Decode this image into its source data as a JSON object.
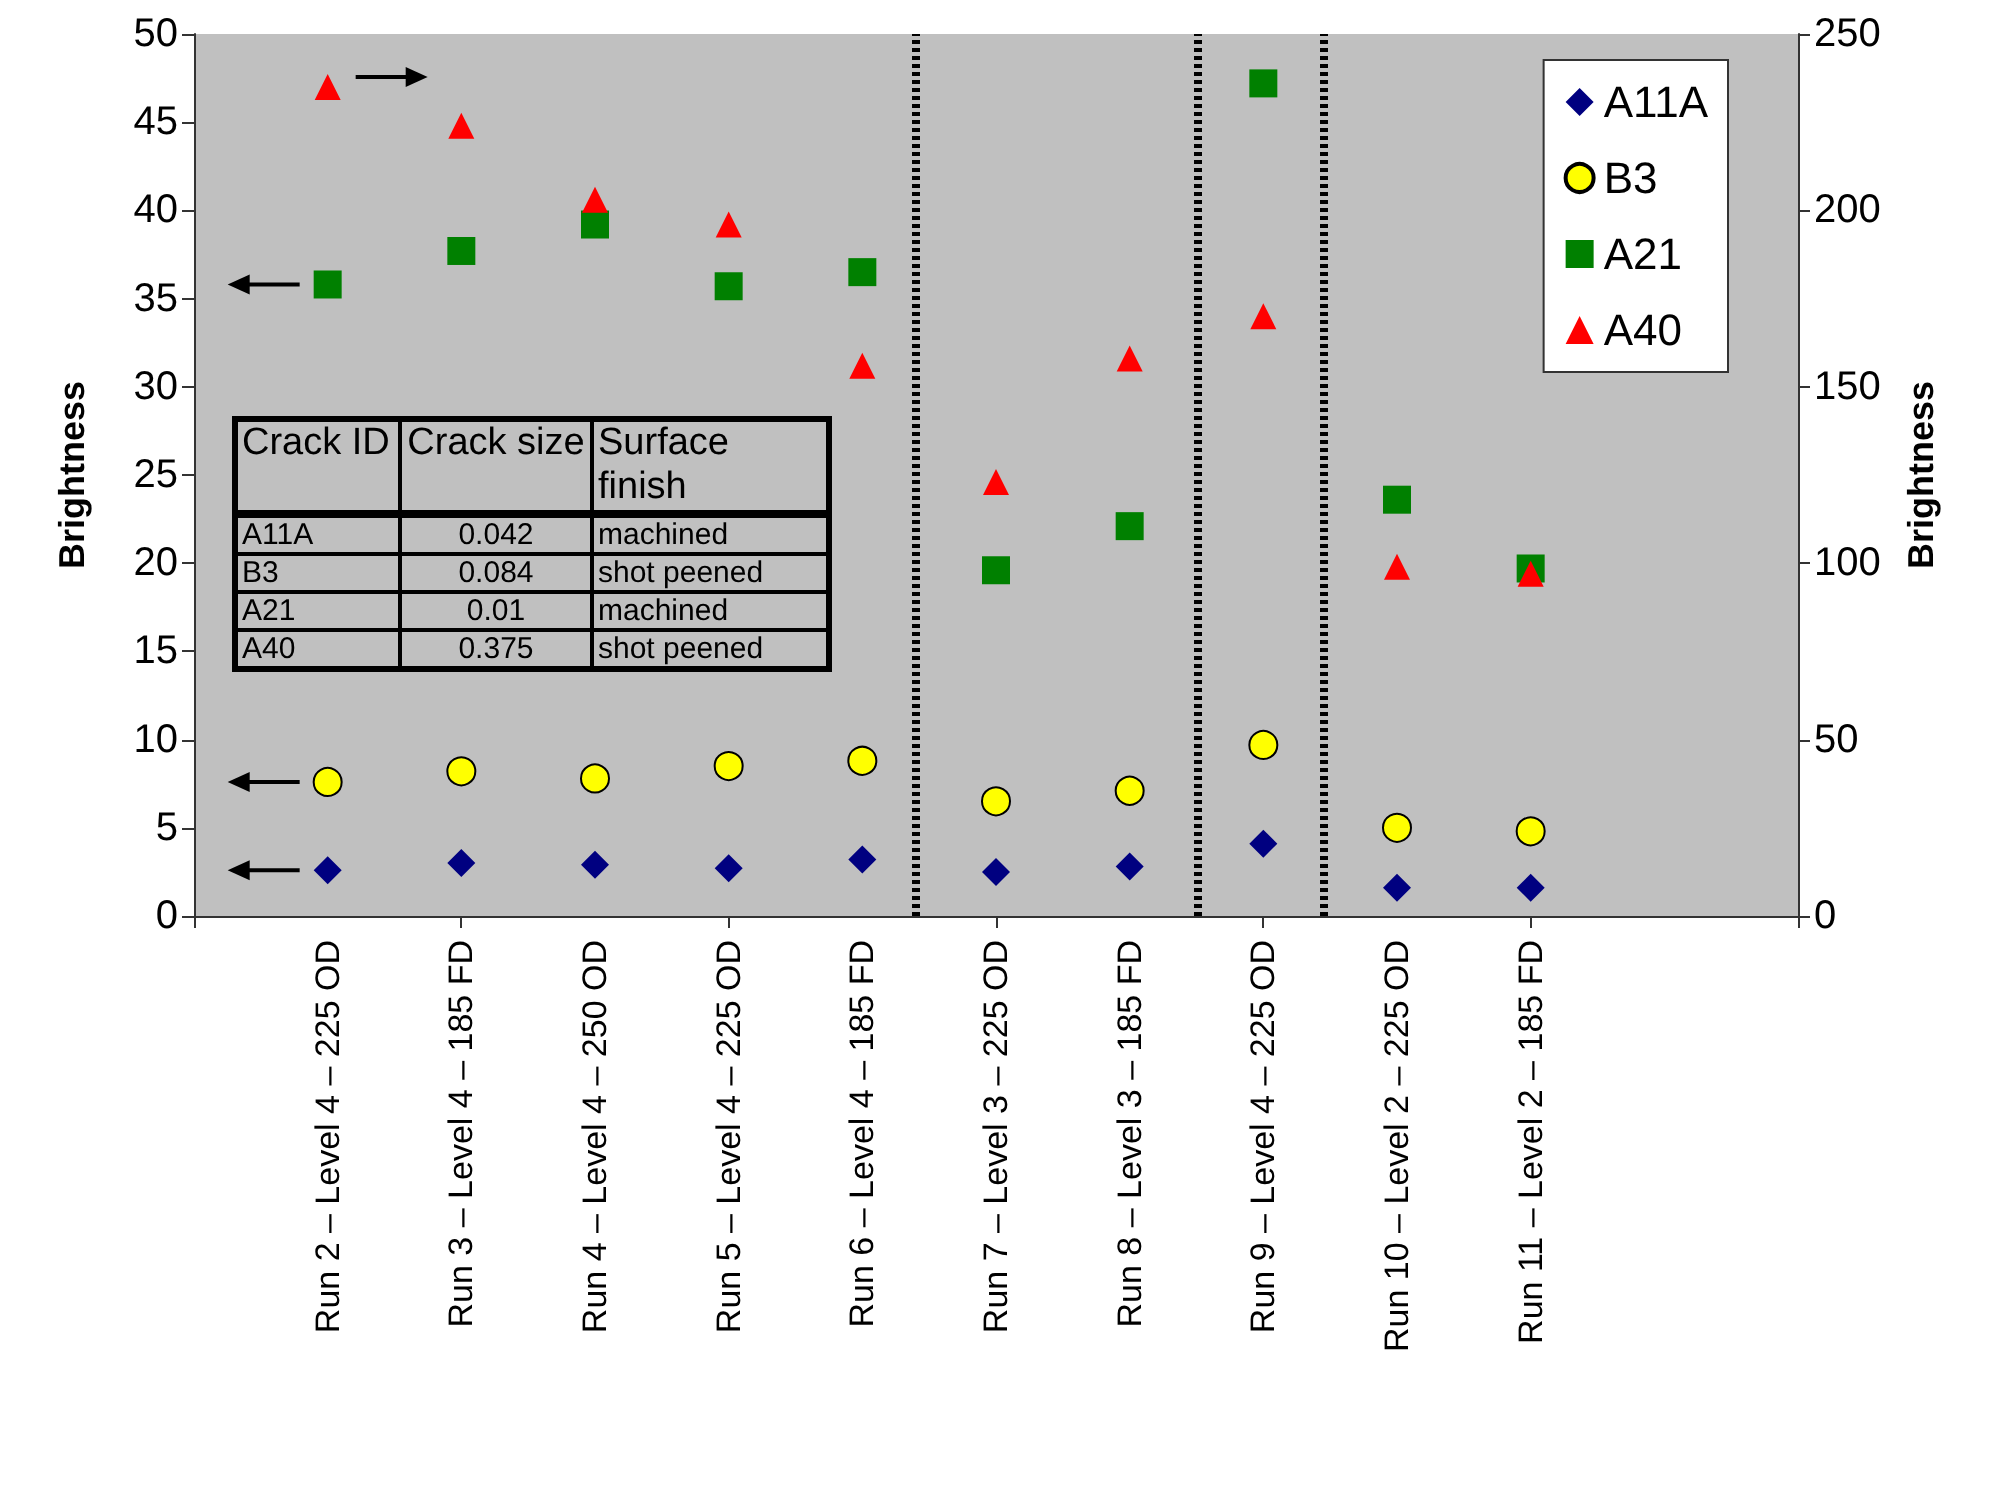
{
  "chart_data": {
    "type": "scatter",
    "categories": [
      null,
      "Run 2 – Level 4 – 225 OD",
      "Run 3 – Level 4 – 185 FD",
      "Run 4 – Level 4 – 250 OD",
      "Run 5 – Level 4 – 225 OD",
      "Run 6 – Level 4 – 185 FD",
      "Run 7 – Level 3 – 225 OD",
      "Run 8 – Level 3 – 185 FD",
      "Run 9 – Level 4 – 225 OD",
      "Run 10 – Level 2 – 225 OD",
      "Run 11 – Level 2 – 185 FD",
      null,
      null
    ],
    "ylabel": "Brightness",
    "y2label": "Brightness",
    "ylim": [
      0,
      50
    ],
    "yticks": [
      0,
      5,
      10,
      15,
      20,
      25,
      30,
      35,
      40,
      45,
      50
    ],
    "y2lim": [
      0,
      250
    ],
    "y2ticks": [
      0,
      50,
      100,
      150,
      200,
      250
    ],
    "series": [
      {
        "name": "A11A",
        "color": "#000080",
        "marker": "diamond",
        "values": [
          null,
          2.6,
          3.0,
          2.9,
          2.7,
          3.2,
          2.5,
          2.8,
          4.1,
          1.6,
          1.6,
          null,
          null
        ]
      },
      {
        "name": "B3",
        "color": "#ffff00",
        "marker": "circle",
        "values": [
          null,
          7.6,
          8.2,
          7.8,
          8.5,
          8.8,
          6.5,
          7.1,
          9.7,
          5.0,
          4.8,
          null,
          null
        ]
      },
      {
        "name": "A21",
        "color": "#008000",
        "marker": "square",
        "values": [
          null,
          35.8,
          37.7,
          39.2,
          35.7,
          36.5,
          19.6,
          22.1,
          47.2,
          23.6,
          19.7,
          null,
          null
        ]
      },
      {
        "name": "A40",
        "color": "#ff0000",
        "marker": "triangle",
        "axis": "y2",
        "values": [
          null,
          235,
          224,
          203,
          196,
          156,
          123,
          158,
          170,
          99,
          97,
          null,
          null
        ]
      }
    ],
    "annotations": [
      "Crack ID",
      "Crack size",
      "Surface finish",
      "A11A",
      "0.042",
      "machined",
      "B3",
      "0.084",
      "shot peened",
      "A21",
      "0.01",
      "machined",
      "A40",
      "0.375",
      "shot peened"
    ],
    "legend": "top right",
    "grid": false
  }
}
